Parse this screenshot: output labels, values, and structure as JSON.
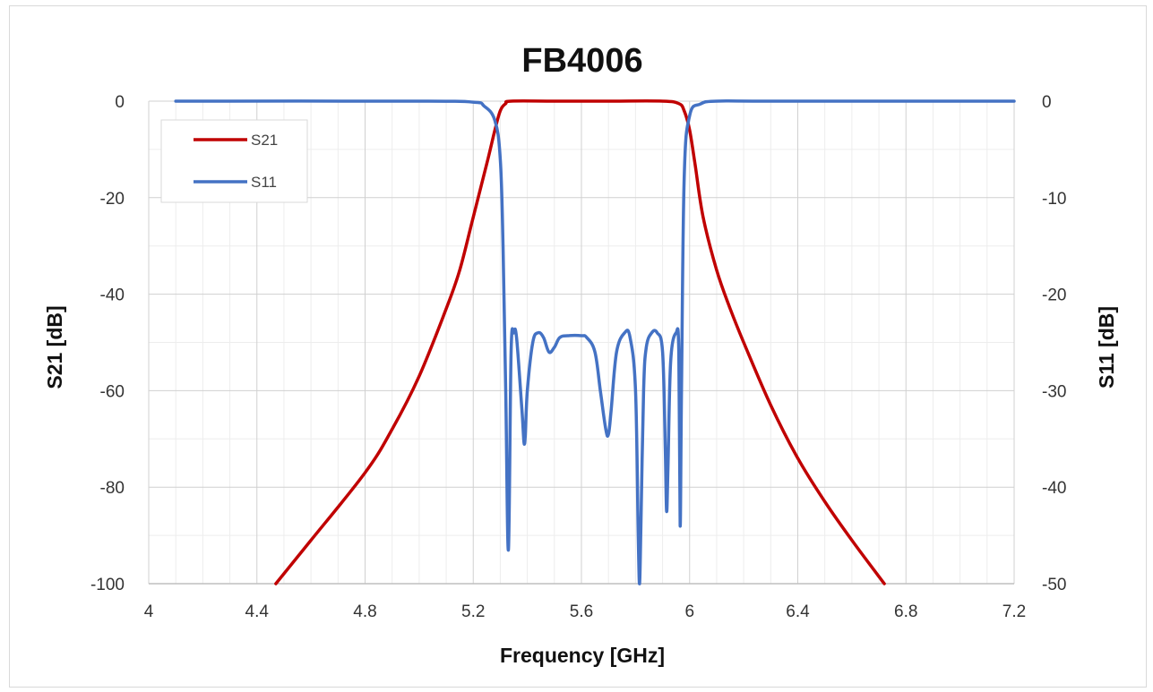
{
  "chart_data": {
    "type": "line",
    "title": "FB4006",
    "xlabel": "Frequency [GHz]",
    "ylabel_left": "S21 [dB]",
    "ylabel_right": "S11 [dB]",
    "xlim": [
      4,
      7.2
    ],
    "ylim_left": [
      -100,
      0
    ],
    "ylim_right": [
      -50,
      0
    ],
    "x_ticks": [
      "4",
      "4.4",
      "4.8",
      "5.2",
      "5.6",
      "6",
      "6.4",
      "6.8",
      "7.2"
    ],
    "y_ticks_left": [
      "0",
      "-20",
      "-40",
      "-60",
      "-80",
      "-100"
    ],
    "y_ticks_right": [
      "0",
      "-10",
      "-20",
      "-30",
      "-40",
      "-50"
    ],
    "grid": true,
    "legend_position": "top-left",
    "series": [
      {
        "name": "S21",
        "axis": "left",
        "color": "#c00000",
        "x": [
          4.47,
          4.6,
          4.8,
          4.9,
          5.0,
          5.1,
          5.15,
          5.2,
          5.25,
          5.28,
          5.3,
          5.32,
          5.34,
          5.5,
          5.7,
          5.9,
          5.96,
          5.98,
          6.0,
          6.02,
          6.05,
          6.1,
          6.15,
          6.2,
          6.3,
          6.4,
          6.5,
          6.6,
          6.72
        ],
        "y": [
          -100,
          -91,
          -77,
          -68,
          -57,
          -43,
          -35,
          -24,
          -13,
          -6,
          -2,
          -0.5,
          0,
          0,
          0,
          0,
          -0.5,
          -2,
          -6,
          -13,
          -24,
          -35,
          -43,
          -50,
          -63,
          -74,
          -83,
          -91,
          -100
        ]
      },
      {
        "name": "S11",
        "axis": "right",
        "color": "#4472c4",
        "x": [
          4.1,
          5.0,
          5.2,
          5.24,
          5.28,
          5.3,
          5.31,
          5.32,
          5.33,
          5.34,
          5.35,
          5.36,
          5.38,
          5.39,
          5.4,
          5.42,
          5.44,
          5.46,
          5.48,
          5.5,
          5.52,
          5.55,
          5.6,
          5.62,
          5.65,
          5.67,
          5.69,
          5.7,
          5.71,
          5.73,
          5.76,
          5.78,
          5.8,
          5.81,
          5.815,
          5.82,
          5.83,
          5.84,
          5.86,
          5.88,
          5.9,
          5.91,
          5.915,
          5.92,
          5.93,
          5.95,
          5.96,
          5.965,
          5.97,
          5.98,
          6.0,
          6.04,
          6.1,
          6.3,
          7.2
        ],
        "y": [
          0,
          0,
          -0.1,
          -0.5,
          -2,
          -6,
          -15,
          -30,
          -46.5,
          -26,
          -24,
          -24.5,
          -32,
          -35.5,
          -30,
          -25,
          -24,
          -24.5,
          -26,
          -25.5,
          -24.5,
          -24.3,
          -24.3,
          -24.5,
          -26,
          -30,
          -34,
          -34.5,
          -32,
          -26,
          -24,
          -24.5,
          -30,
          -45,
          -50,
          -44,
          -30,
          -25.5,
          -24,
          -24,
          -26,
          -36,
          -42.5,
          -38,
          -27,
          -24,
          -26,
          -44,
          -30,
          -8,
          -1.5,
          -0.3,
          0,
          0,
          0
        ]
      }
    ]
  }
}
